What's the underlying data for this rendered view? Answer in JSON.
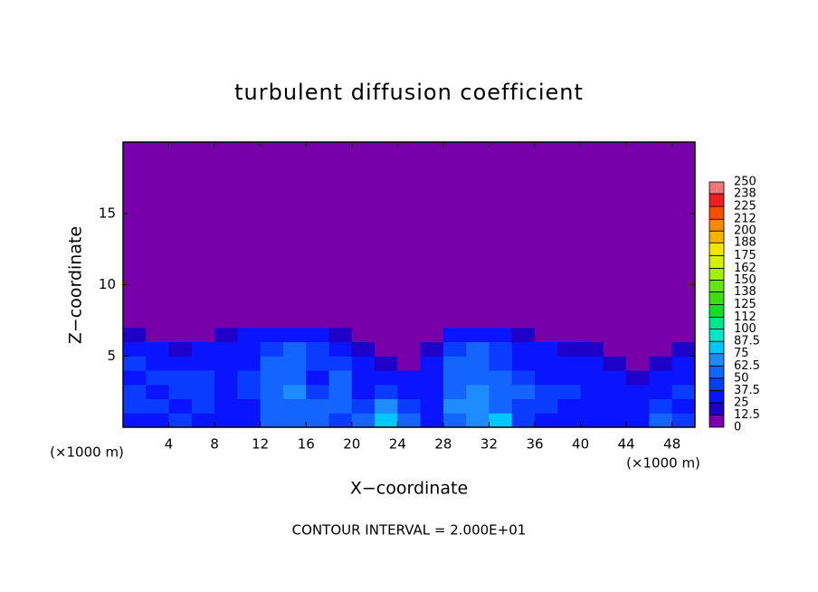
{
  "chart_data": {
    "type": "heatmap",
    "title": "turbulent diffusion coefficient",
    "x_label": "X−coordinate",
    "y_label": "Z−coordinate",
    "x_unit": "(×1000 m)",
    "y_unit": "(×1000 m)",
    "footnote": "CONTOUR INTERVAL = 2.000E+01",
    "xlim": [
      0,
      50
    ],
    "ylim": [
      0,
      20
    ],
    "xticks": [
      4,
      8,
      12,
      16,
      20,
      24,
      28,
      32,
      36,
      40,
      44,
      48
    ],
    "yticks": [
      5,
      10,
      15
    ],
    "field": {
      "x_edges": [
        0,
        2,
        4,
        6,
        8,
        10,
        12,
        14,
        16,
        18,
        20,
        22,
        24,
        26,
        28,
        30,
        32,
        34,
        36,
        38,
        40,
        42,
        44,
        46,
        48,
        50
      ],
      "z_edges": [
        0,
        1,
        2,
        3,
        4,
        5,
        6,
        7,
        20
      ],
      "values": [
        [
          35,
          30,
          40,
          35,
          30,
          35,
          50,
          55,
          60,
          45,
          60,
          80,
          55,
          35,
          60,
          70,
          75,
          40,
          35,
          35,
          30,
          30,
          35,
          60,
          40
        ],
        [
          40,
          45,
          35,
          40,
          30,
          35,
          55,
          60,
          55,
          50,
          45,
          65,
          40,
          35,
          65,
          70,
          60,
          45,
          40,
          35,
          30,
          35,
          30,
          40,
          35
        ],
        [
          45,
          35,
          40,
          45,
          35,
          40,
          60,
          65,
          40,
          55,
          35,
          45,
          35,
          30,
          60,
          65,
          55,
          50,
          45,
          40,
          35,
          30,
          30,
          35,
          40
        ],
        [
          35,
          40,
          45,
          40,
          35,
          40,
          55,
          60,
          35,
          50,
          30,
          35,
          25,
          30,
          55,
          60,
          50,
          40,
          35,
          35,
          30,
          25,
          20,
          30,
          35
        ],
        [
          40,
          35,
          35,
          30,
          35,
          35,
          50,
          55,
          45,
          45,
          25,
          15,
          10,
          25,
          50,
          55,
          45,
          35,
          30,
          30,
          25,
          15,
          10,
          20,
          30
        ],
        [
          30,
          25,
          20,
          25,
          30,
          30,
          45,
          50,
          40,
          35,
          15,
          5,
          5,
          20,
          45,
          50,
          40,
          30,
          25,
          20,
          15,
          5,
          5,
          10,
          20
        ],
        [
          15,
          10,
          5,
          10,
          20,
          25,
          35,
          30,
          25,
          20,
          5,
          5,
          5,
          10,
          35,
          35,
          30,
          20,
          10,
          5,
          5,
          5,
          5,
          5,
          5
        ],
        [
          5,
          5,
          5,
          5,
          5,
          5,
          5,
          5,
          5,
          5,
          5,
          5,
          5,
          5,
          5,
          5,
          5,
          5,
          5,
          5,
          5,
          5,
          5,
          5,
          5
        ]
      ]
    },
    "colorbar": {
      "ticks": [
        0,
        12.5,
        25,
        37.5,
        50,
        62.5,
        75,
        87.5,
        100,
        112,
        125,
        138,
        150,
        162,
        175,
        188,
        200,
        212,
        225,
        238,
        250
      ],
      "colors": [
        "#7800aa",
        "#1e00c8",
        "#0a14ff",
        "#0a3cff",
        "#1464ff",
        "#1e8cff",
        "#00c8ff",
        "#00e6c8",
        "#00e68c",
        "#14dc28",
        "#3cdc14",
        "#64e614",
        "#a0f000",
        "#d2f000",
        "#f0e600",
        "#f5b400",
        "#f58c00",
        "#f55000",
        "#f01e1e",
        "#f07878"
      ]
    }
  }
}
